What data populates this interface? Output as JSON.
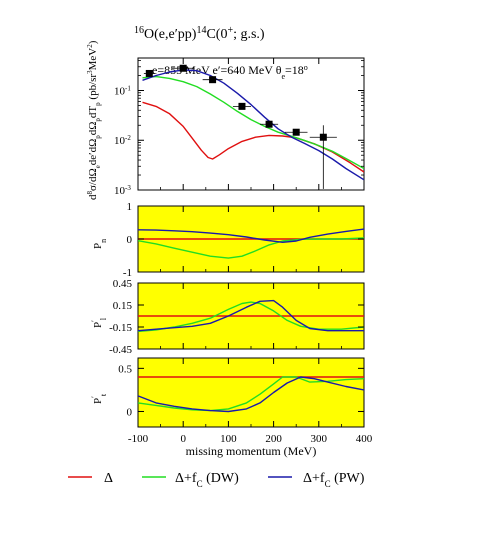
{
  "colors": {
    "delta": "#e01010",
    "dw": "#22dd22",
    "pw": "#1a1aaa",
    "panel_bg": "#ffff00",
    "points": "#000000"
  },
  "chart_data": [
    {
      "type": "scatter",
      "title": {
        "sup_a": "16",
        "text_a": "O(e,e′pp)",
        "sup_b": "14",
        "text_b": "C(0",
        "sup_c": "+",
        "text_c": "; g.s.)"
      },
      "annotation": {
        "text": "e=855 MeV e′=640 MeV θ",
        "sub": "e",
        "text_b": "=18",
        "sup": "o"
      },
      "ylabel": {
        "main": "d",
        "sup": "8",
        "rest": "σ/dΩ",
        "sub1": "e",
        "mid1": "de′dΩ",
        "sub2": "p",
        "mid2": "dΩ",
        "sub3": "p",
        "mid3": "dT",
        "sub4": "p",
        "unit": " (pb/sr",
        "unit_sup": "3",
        "unit_end": "MeV",
        "unit_sup2": "2",
        "unit_close": ")"
      },
      "yscale": "log",
      "ylim": [
        0.001,
        0.45
      ],
      "xlim": [
        -100,
        400
      ],
      "yticks": [
        {
          "value": 0.1,
          "base": "10",
          "exp": "-1"
        },
        {
          "value": 0.01,
          "base": "10",
          "exp": "-2"
        },
        {
          "value": 0.001,
          "base": "10",
          "exp": "-3"
        }
      ],
      "data_points": [
        {
          "x": -75,
          "y": 0.22,
          "xerr": 12
        },
        {
          "x": 0,
          "y": 0.28,
          "xerr": 25
        },
        {
          "x": 65,
          "y": 0.165,
          "xerr": 22
        },
        {
          "x": 130,
          "y": 0.048,
          "xerr": 20
        },
        {
          "x": 190,
          "y": 0.021,
          "xerr": 20
        },
        {
          "x": 250,
          "y": 0.0145,
          "xerr": 25
        },
        {
          "x": 310,
          "y": 0.0115,
          "xerr": 30,
          "yerr_low": 0.00105,
          "yerr_high": 0.02
        }
      ],
      "series": [
        {
          "key": "delta",
          "x": [
            -90,
            -60,
            -30,
            0,
            20,
            40,
            55,
            65,
            80,
            100,
            130,
            160,
            190,
            220,
            250,
            290,
            330,
            370,
            400
          ],
          "y": [
            0.058,
            0.048,
            0.034,
            0.019,
            0.011,
            0.0063,
            0.0045,
            0.0042,
            0.0051,
            0.0068,
            0.0095,
            0.0115,
            0.0125,
            0.0122,
            0.0112,
            0.0085,
            0.0058,
            0.0035,
            0.0023
          ]
        },
        {
          "key": "dw",
          "x": [
            -90,
            -60,
            -30,
            0,
            30,
            60,
            90,
            120,
            150,
            180,
            210,
            240,
            270,
            300,
            330,
            360,
            400
          ],
          "y": [
            0.18,
            0.19,
            0.175,
            0.15,
            0.12,
            0.085,
            0.058,
            0.038,
            0.026,
            0.019,
            0.0145,
            0.012,
            0.0098,
            0.0078,
            0.006,
            0.0043,
            0.0027
          ]
        },
        {
          "key": "pw",
          "x": [
            -90,
            -60,
            -30,
            0,
            30,
            60,
            90,
            120,
            150,
            180,
            210,
            240,
            270,
            300,
            330,
            360,
            400
          ],
          "y": [
            0.16,
            0.2,
            0.235,
            0.26,
            0.25,
            0.2,
            0.14,
            0.088,
            0.052,
            0.029,
            0.017,
            0.0115,
            0.0085,
            0.0062,
            0.0042,
            0.0027,
            0.0016
          ]
        }
      ]
    },
    {
      "type": "line",
      "ylabel": {
        "main": "P",
        "sub": "n"
      },
      "ylim": [
        -1,
        1
      ],
      "xlim": [
        -100,
        400
      ],
      "yticks": [
        {
          "value": 1,
          "label": "1"
        },
        {
          "value": 0,
          "label": "0"
        },
        {
          "value": -1,
          "label": "-1"
        }
      ],
      "series": [
        {
          "key": "delta",
          "x": [
            -100,
            400
          ],
          "y": [
            0,
            0
          ]
        },
        {
          "key": "dw",
          "x": [
            -100,
            -60,
            -20,
            20,
            60,
            100,
            130,
            160,
            190,
            220,
            260,
            300,
            350,
            400
          ],
          "y": [
            -0.05,
            -0.15,
            -0.28,
            -0.4,
            -0.52,
            -0.58,
            -0.52,
            -0.36,
            -0.18,
            -0.06,
            -0.01,
            0.0,
            0.0,
            0.03
          ]
        },
        {
          "key": "pw",
          "x": [
            -100,
            -60,
            -20,
            20,
            60,
            100,
            140,
            180,
            220,
            250,
            280,
            320,
            360,
            400
          ],
          "y": [
            0.28,
            0.27,
            0.25,
            0.22,
            0.18,
            0.13,
            0.06,
            -0.03,
            -0.1,
            -0.06,
            0.05,
            0.15,
            0.23,
            0.3
          ]
        }
      ]
    },
    {
      "type": "line",
      "ylabel": {
        "main": "P",
        "sup": "′",
        "sub": "l"
      },
      "ylim": [
        -0.45,
        0.45
      ],
      "xlim": [
        -100,
        400
      ],
      "yticks": [
        {
          "value": 0.45,
          "label": "0.45"
        },
        {
          "value": 0.15,
          "label": "0.15"
        },
        {
          "value": -0.15,
          "label": "-0.15"
        },
        {
          "value": -0.45,
          "label": "-0.45"
        }
      ],
      "series": [
        {
          "key": "delta",
          "x": [
            -100,
            400
          ],
          "y": [
            0.0,
            0.0
          ]
        },
        {
          "key": "dw",
          "x": [
            -100,
            -60,
            -20,
            20,
            60,
            100,
            130,
            150,
            170,
            200,
            230,
            260,
            300,
            350,
            400
          ],
          "y": [
            -0.21,
            -0.19,
            -0.15,
            -0.1,
            -0.03,
            0.09,
            0.17,
            0.19,
            0.17,
            0.07,
            -0.06,
            -0.14,
            -0.18,
            -0.18,
            -0.15
          ]
        },
        {
          "key": "pw",
          "x": [
            -100,
            -60,
            -20,
            20,
            60,
            100,
            140,
            170,
            200,
            220,
            250,
            280,
            320,
            360,
            400
          ],
          "y": [
            -0.2,
            -0.18,
            -0.16,
            -0.14,
            -0.1,
            0.0,
            0.12,
            0.2,
            0.21,
            0.12,
            -0.06,
            -0.17,
            -0.2,
            -0.2,
            -0.2
          ]
        }
      ]
    },
    {
      "type": "line",
      "ylabel": {
        "main": "P",
        "sup": "′",
        "sub": "t"
      },
      "ylim": [
        -0.18,
        0.62
      ],
      "xlim": [
        -100,
        400
      ],
      "xlabel": "missing momentum (MeV)",
      "yticks": [
        {
          "value": 0.5,
          "label": "0.5"
        },
        {
          "value": 0,
          "label": "0"
        }
      ],
      "xticks": [
        {
          "value": -100,
          "label": "-100"
        },
        {
          "value": 0,
          "label": "0"
        },
        {
          "value": 100,
          "label": "100"
        },
        {
          "value": 200,
          "label": "200"
        },
        {
          "value": 300,
          "label": "300"
        },
        {
          "value": 400,
          "label": "400"
        }
      ],
      "series": [
        {
          "key": "delta",
          "x": [
            -100,
            400
          ],
          "y": [
            0.4,
            0.4
          ]
        },
        {
          "key": "dw",
          "x": [
            -100,
            -60,
            -20,
            20,
            60,
            100,
            140,
            170,
            200,
            220,
            250,
            280,
            320,
            360,
            400
          ],
          "y": [
            0.1,
            0.07,
            0.04,
            0.02,
            0.01,
            0.03,
            0.1,
            0.2,
            0.32,
            0.4,
            0.4,
            0.34,
            0.35,
            0.37,
            0.38
          ]
        },
        {
          "key": "pw",
          "x": [
            -100,
            -60,
            -20,
            20,
            60,
            100,
            140,
            170,
            200,
            230,
            260,
            290,
            320,
            360,
            400
          ],
          "y": [
            0.18,
            0.1,
            0.06,
            0.03,
            0.01,
            0.0,
            0.03,
            0.1,
            0.22,
            0.33,
            0.4,
            0.38,
            0.34,
            0.29,
            0.25
          ]
        }
      ]
    }
  ],
  "legend": [
    {
      "key": "delta",
      "label": "Δ"
    },
    {
      "key": "dw",
      "label": "Δ+f",
      "sub": "C",
      "tail": " (DW)"
    },
    {
      "key": "pw",
      "label": "Δ+f",
      "sub": "C",
      "tail": " (PW)"
    }
  ]
}
